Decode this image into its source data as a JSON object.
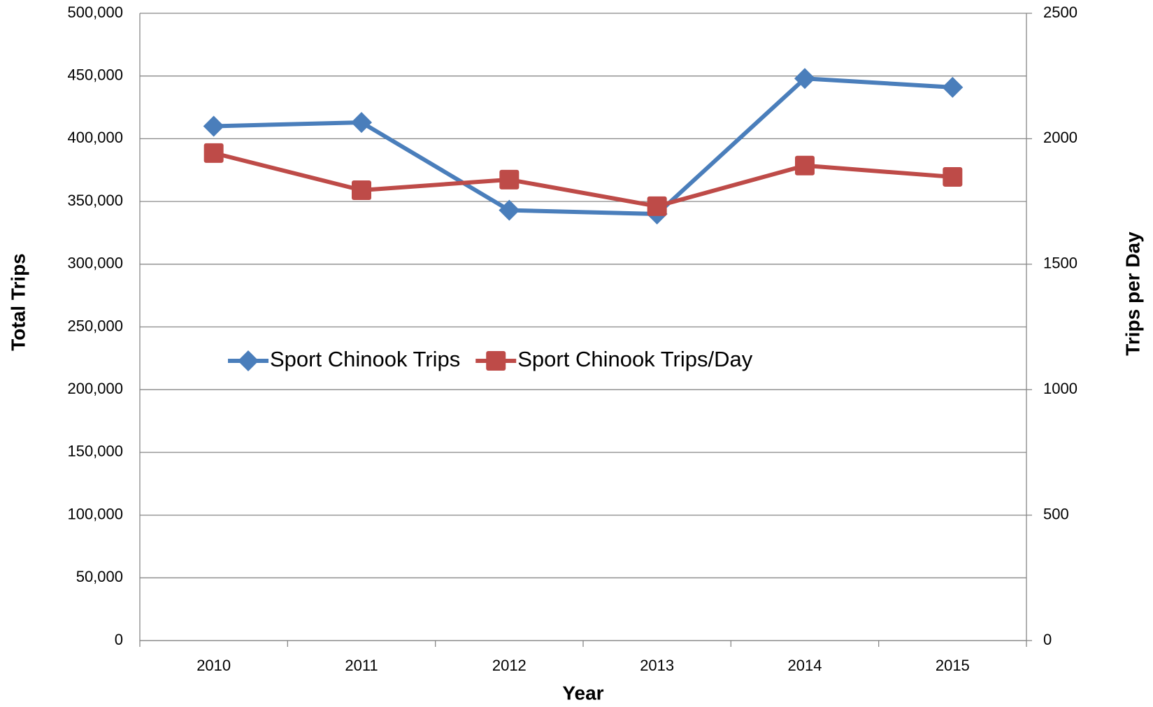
{
  "chart_data": {
    "type": "line",
    "xlabel": "Year",
    "ylabel": "Total Trips",
    "y2label": "Trips per Day",
    "categories": [
      "2010",
      "2011",
      "2012",
      "2013",
      "2014",
      "2015"
    ],
    "series": [
      {
        "name": "Sport Chinook Trips",
        "color": "#4a7ebb",
        "marker": "diamond",
        "values": [
          410000,
          413000,
          343000,
          340000,
          448000,
          441000
        ]
      },
      {
        "name": "Sport Chinook Trips/Day",
        "color": "#be4b48",
        "marker": "square",
        "axis": "y2",
        "values": [
          1943,
          1795,
          1837,
          1731,
          1893,
          1848
        ]
      }
    ],
    "ylim": [
      0,
      500000
    ],
    "yticks": [
      0,
      {
        "value": 50000,
        "label": "50,000"
      },
      {
        "value": 100000,
        "label": "100,000"
      },
      {
        "value": 150000,
        "label": "150,000"
      },
      {
        "value": 200000,
        "label": "200,000"
      },
      {
        "value": 250000,
        "label": "250,000"
      },
      {
        "value": 300000,
        "label": "300,000"
      },
      {
        "value": 350000,
        "label": "350,000"
      },
      {
        "value": 400000,
        "label": "400,000"
      },
      {
        "value": 450000,
        "label": "450,000"
      },
      {
        "value": 500000,
        "label": "500,000"
      }
    ],
    "y2lim": [
      0,
      2500
    ],
    "y2ticks": [
      0,
      500,
      1000,
      1500,
      2000,
      2500
    ],
    "grid": true
  }
}
